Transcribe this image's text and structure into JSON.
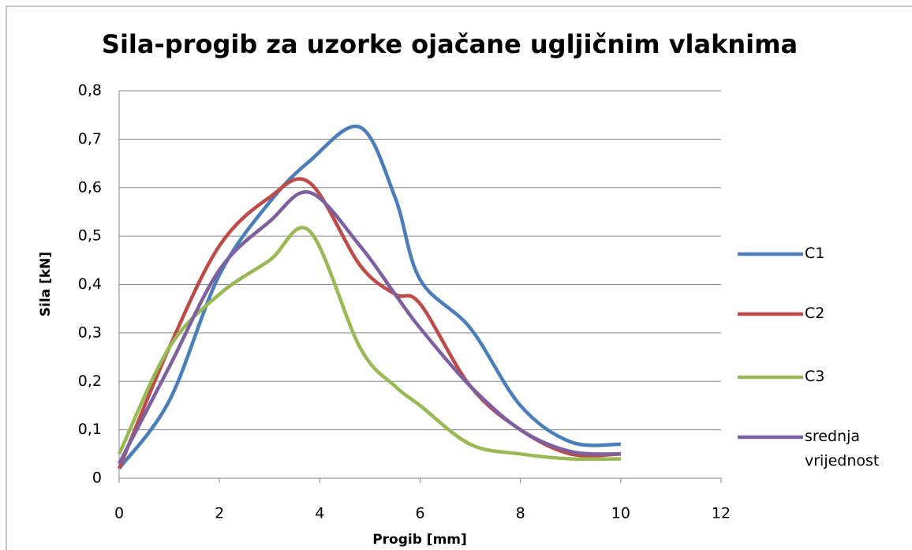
{
  "chart_data": {
    "type": "line",
    "title": "Sila-progib za uzorke ojačane ugljičnim vlaknima",
    "xlabel": "Progib [mm]",
    "ylabel": "Sila [kN]",
    "x": [
      0,
      1,
      2,
      3,
      3.8,
      4.8,
      5.5,
      6,
      7,
      8,
      9,
      10
    ],
    "series": [
      {
        "name": "C1",
        "color": "#4a7ebb",
        "values": [
          0.02,
          0.16,
          0.42,
          0.57,
          0.655,
          0.725,
          0.58,
          0.41,
          0.31,
          0.15,
          0.075,
          0.07
        ]
      },
      {
        "name": "C2",
        "color": "#be4b48",
        "values": [
          0.02,
          0.27,
          0.48,
          0.58,
          0.61,
          0.44,
          0.38,
          0.36,
          0.19,
          0.1,
          0.05,
          0.05
        ]
      },
      {
        "name": "C3",
        "color": "#98b954",
        "values": [
          0.05,
          0.27,
          0.38,
          0.45,
          0.51,
          0.27,
          0.19,
          0.15,
          0.07,
          0.05,
          0.04,
          0.04
        ]
      },
      {
        "name": "srednja vrijednost",
        "color": "#7d60a0",
        "values": [
          0.03,
          0.23,
          0.43,
          0.53,
          0.59,
          0.48,
          0.38,
          0.31,
          0.19,
          0.1,
          0.055,
          0.05
        ]
      }
    ],
    "xlim": [
      0,
      12
    ],
    "xticks": [
      0,
      2,
      4,
      6,
      8,
      10,
      12
    ],
    "ylim": [
      0,
      0.8
    ],
    "yticks": [
      0,
      {
        "value": 0.1,
        "label": "0,1"
      },
      {
        "value": 0.2,
        "label": "0,2"
      },
      {
        "value": 0.3,
        "label": "0,3"
      },
      {
        "value": 0.4,
        "label": "0,4"
      },
      {
        "value": 0.5,
        "label": "0,5"
      },
      {
        "value": 0.6,
        "label": "0,6"
      },
      {
        "value": 0.7,
        "label": "0,7"
      },
      {
        "value": 0.8,
        "label": "0,8"
      }
    ],
    "grid": true,
    "legend": "right"
  }
}
